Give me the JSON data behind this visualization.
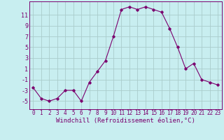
{
  "x": [
    0,
    1,
    2,
    3,
    4,
    5,
    6,
    7,
    8,
    9,
    10,
    11,
    12,
    13,
    14,
    15,
    16,
    17,
    18,
    19,
    20,
    21,
    22,
    23
  ],
  "y": [
    -2.5,
    -4.5,
    -5.0,
    -4.5,
    -3.0,
    -3.0,
    -5.0,
    -1.5,
    0.5,
    2.5,
    7.0,
    12.0,
    12.5,
    12.0,
    12.5,
    12.0,
    11.5,
    8.5,
    5.0,
    1.0,
    2.0,
    -1.0,
    -1.5,
    -2.0
  ],
  "line_color": "#7B006E",
  "marker": "D",
  "marker_size": 1.8,
  "linewidth": 0.8,
  "bg_color": "#C8EEF0",
  "grid_color": "#AACCCC",
  "xlabel": "Windchill (Refroidissement éolien,°C)",
  "xlabel_fontsize": 6.5,
  "ylim": [
    -6.5,
    13.5
  ],
  "xlim": [
    -0.5,
    23.5
  ],
  "xtick_fontsize": 5.5,
  "ytick_fontsize": 6.0,
  "yticks": [
    -5,
    -3,
    -1,
    1,
    3,
    5,
    7,
    9,
    11
  ]
}
